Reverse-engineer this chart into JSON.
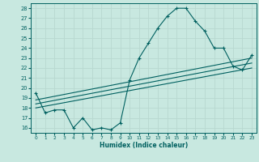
{
  "xlabel": "Humidex (Indice chaleur)",
  "xlim": [
    -0.5,
    23.5
  ],
  "ylim": [
    15.5,
    28.5
  ],
  "yticks": [
    16,
    17,
    18,
    19,
    20,
    21,
    22,
    23,
    24,
    25,
    26,
    27,
    28
  ],
  "xticks": [
    0,
    1,
    2,
    3,
    4,
    5,
    6,
    7,
    8,
    9,
    10,
    11,
    12,
    13,
    14,
    15,
    16,
    17,
    18,
    19,
    20,
    21,
    22,
    23
  ],
  "bg_color": "#c8e8e0",
  "line_color": "#006060",
  "grid_color": "#b8d8d0",
  "main_x": [
    0,
    1,
    2,
    3,
    4,
    5,
    6,
    7,
    8,
    9,
    10,
    11,
    12,
    13,
    14,
    15,
    16,
    17,
    18,
    19,
    20,
    21,
    22,
    23
  ],
  "main_y": [
    19.5,
    17.5,
    17.8,
    17.8,
    16.0,
    17.0,
    15.8,
    16.0,
    15.8,
    16.5,
    20.8,
    23.0,
    24.5,
    26.0,
    27.2,
    28.0,
    28.0,
    26.7,
    25.7,
    24.0,
    24.0,
    22.2,
    21.8,
    23.3
  ],
  "trend_lines": [
    {
      "x": [
        0,
        23
      ],
      "y": [
        18.0,
        22.0
      ]
    },
    {
      "x": [
        0,
        23
      ],
      "y": [
        18.4,
        22.5
      ]
    },
    {
      "x": [
        0,
        23
      ],
      "y": [
        18.8,
        23.0
      ]
    }
  ]
}
